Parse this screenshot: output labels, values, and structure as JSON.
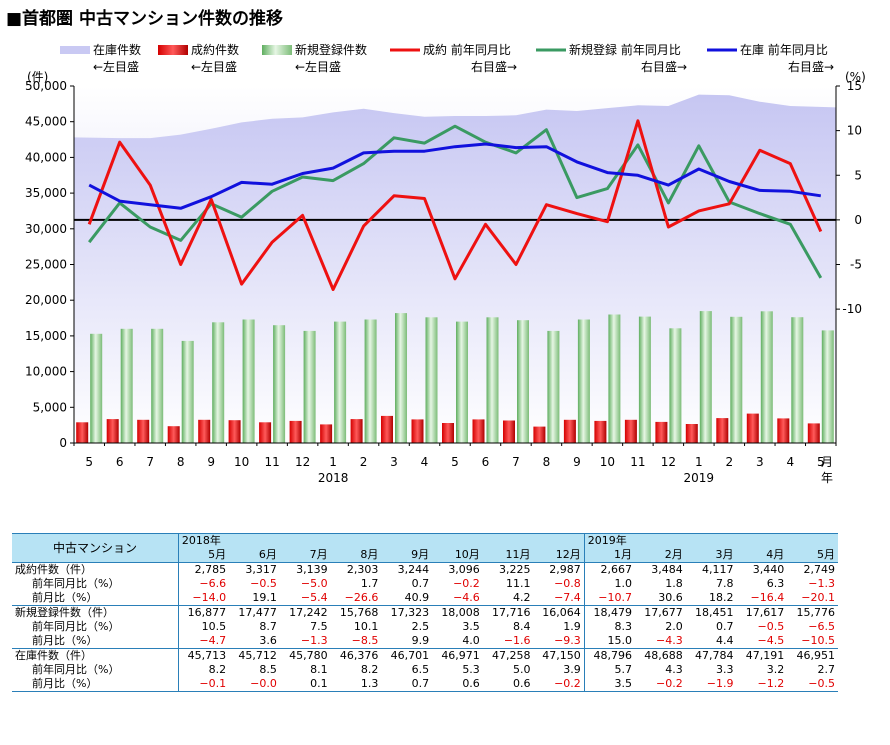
{
  "title": "■首都圏 中古マンション件数の推移",
  "legend": [
    {
      "name": "在庫件数",
      "note": "←左目盛",
      "kind": "area",
      "color": "#c9c9f3"
    },
    {
      "name": "成約件数",
      "note": "←左目盛",
      "kind": "bar",
      "color": "#cc0000"
    },
    {
      "name": "新規登録件数",
      "note": "←左目盛",
      "kind": "bar",
      "color": "#8ec98a"
    },
    {
      "name": "成約 前年同月比",
      "note": "右目盛→",
      "kind": "line",
      "color": "#ee1111"
    },
    {
      "name": "新規登録 前年同月比",
      "note": "右目盛→",
      "kind": "line",
      "color": "#3a9a62"
    },
    {
      "name": "在庫 前年同月比",
      "note": "右目盛→",
      "kind": "line",
      "color": "#1111dd"
    }
  ],
  "left_unit": "(件)",
  "right_unit": "(%)",
  "month_unit": [
    "月",
    "年"
  ],
  "left_ticks": [
    "50,000",
    "45,000",
    "40,000",
    "35,000",
    "30,000",
    "25,000",
    "20,000",
    "15,000",
    "10,000",
    "5,000",
    "0"
  ],
  "right_ticks": [
    "15",
    "10",
    "5",
    "0",
    "-5",
    "-10"
  ],
  "chart_data": {
    "type": "bar",
    "categories": [
      "5",
      "6",
      "7",
      "8",
      "9",
      "10",
      "11",
      "12",
      "1",
      "2",
      "3",
      "4",
      "5",
      "6",
      "7",
      "8",
      "9",
      "10",
      "11",
      "12",
      "1",
      "2",
      "3",
      "4",
      "5"
    ],
    "year_labels": [
      {
        "label": "2018",
        "index": 8
      },
      {
        "label": "2019",
        "index": 20
      }
    ],
    "ylim_left": [
      0,
      50000
    ],
    "ylim_right": [
      -25,
      15
    ],
    "series": [
      {
        "name": "在庫件数",
        "type": "area",
        "axis": "left",
        "values": [
          42800,
          42700,
          42700,
          43200,
          44000,
          44900,
          45400,
          45600,
          46300,
          46800,
          46200,
          45700,
          45800,
          45800,
          45900,
          46700,
          46500,
          46900,
          47300,
          47200,
          48800,
          48700,
          47800,
          47200,
          47000
        ]
      },
      {
        "name": "成約件数",
        "type": "bar",
        "axis": "left",
        "values": [
          2900,
          3350,
          3250,
          2350,
          3250,
          3200,
          2900,
          3100,
          2600,
          3350,
          3800,
          3300,
          2800,
          3300,
          3150,
          2300,
          3250,
          3100,
          3250,
          2950,
          2667,
          3484,
          4117,
          3440,
          2749
        ]
      },
      {
        "name": "新規登録件数",
        "type": "bar",
        "axis": "left",
        "values": [
          15300,
          16000,
          16000,
          14300,
          16900,
          17300,
          16500,
          15700,
          17000,
          17300,
          18200,
          17600,
          17000,
          17600,
          17200,
          15700,
          17300,
          18000,
          17700,
          16064,
          18479,
          17677,
          18451,
          17617,
          15776
        ]
      },
      {
        "name": "成約 前年同月比",
        "type": "line",
        "axis": "right",
        "values": [
          -0.5,
          8.7,
          3.9,
          -5.0,
          2.3,
          -7.2,
          -2.5,
          0.5,
          -7.8,
          -0.7,
          2.7,
          2.4,
          -6.6,
          -0.5,
          -5.0,
          1.7,
          0.7,
          -0.2,
          11.1,
          -0.8,
          1.0,
          1.8,
          7.8,
          6.3,
          -1.3
        ]
      },
      {
        "name": "新規登録 前年同月比",
        "type": "line",
        "axis": "right",
        "values": [
          -2.5,
          1.9,
          -0.8,
          -2.3,
          1.8,
          0.3,
          3.2,
          4.8,
          4.4,
          6.3,
          9.2,
          8.6,
          10.5,
          8.7,
          7.5,
          10.1,
          2.5,
          3.5,
          8.4,
          1.9,
          8.3,
          2.0,
          0.7,
          -0.5,
          -6.5
        ]
      },
      {
        "name": "在庫 前年同月比",
        "type": "line",
        "axis": "right",
        "values": [
          3.9,
          2.1,
          1.7,
          1.3,
          2.6,
          4.2,
          4.0,
          5.2,
          5.8,
          7.5,
          7.7,
          7.7,
          8.2,
          8.5,
          8.1,
          8.2,
          6.5,
          5.3,
          5.0,
          3.9,
          5.7,
          4.3,
          3.3,
          3.2,
          2.7
        ]
      }
    ]
  },
  "table": {
    "header_label": "中古マンション",
    "year1": "2018年",
    "year2": "2019年",
    "months": [
      "5月",
      "6月",
      "7月",
      "8月",
      "9月",
      "10月",
      "11月",
      "12月",
      "1月",
      "2月",
      "3月",
      "4月",
      "5月"
    ],
    "rows": [
      {
        "label": "成約件数（件）",
        "sub": false,
        "group": true,
        "values": [
          "2,785",
          "3,317",
          "3,139",
          "2,303",
          "3,244",
          "3,096",
          "3,225",
          "2,987",
          "2,667",
          "3,484",
          "4,117",
          "3,440",
          "2,749"
        ]
      },
      {
        "label": "前年同月比（%）",
        "sub": true,
        "values": [
          "−6.6",
          "−0.5",
          "−5.0",
          "1.7",
          "0.7",
          "−0.2",
          "11.1",
          "−0.8",
          "1.0",
          "1.8",
          "7.8",
          "6.3",
          "−1.3"
        ]
      },
      {
        "label": "前月比（%）",
        "sub": true,
        "values": [
          "−14.0",
          "19.1",
          "−5.4",
          "−26.6",
          "40.9",
          "−4.6",
          "4.2",
          "−7.4",
          "−10.7",
          "30.6",
          "18.2",
          "−16.4",
          "−20.1"
        ]
      },
      {
        "label": "新規登録件数（件）",
        "sub": false,
        "group": true,
        "values": [
          "16,877",
          "17,477",
          "17,242",
          "15,768",
          "17,323",
          "18,008",
          "17,716",
          "16,064",
          "18,479",
          "17,677",
          "18,451",
          "17,617",
          "15,776"
        ]
      },
      {
        "label": "前年同月比（%）",
        "sub": true,
        "values": [
          "10.5",
          "8.7",
          "7.5",
          "10.1",
          "2.5",
          "3.5",
          "8.4",
          "1.9",
          "8.3",
          "2.0",
          "0.7",
          "−0.5",
          "−6.5"
        ]
      },
      {
        "label": "前月比（%）",
        "sub": true,
        "values": [
          "−4.7",
          "3.6",
          "−1.3",
          "−8.5",
          "9.9",
          "4.0",
          "−1.6",
          "−9.3",
          "15.0",
          "−4.3",
          "4.4",
          "−4.5",
          "−10.5"
        ]
      },
      {
        "label": "在庫件数（件）",
        "sub": false,
        "group": true,
        "values": [
          "45,713",
          "45,712",
          "45,780",
          "46,376",
          "46,701",
          "46,971",
          "47,258",
          "47,150",
          "48,796",
          "48,688",
          "47,784",
          "47,191",
          "46,951"
        ]
      },
      {
        "label": "前年同月比（%）",
        "sub": true,
        "values": [
          "8.2",
          "8.5",
          "8.1",
          "8.2",
          "6.5",
          "5.3",
          "5.0",
          "3.9",
          "5.7",
          "4.3",
          "3.3",
          "3.2",
          "2.7"
        ]
      },
      {
        "label": "前月比（%）",
        "sub": true,
        "values": [
          "−0.1",
          "−0.0",
          "0.1",
          "1.3",
          "0.7",
          "0.6",
          "0.6",
          "−0.2",
          "3.5",
          "−0.2",
          "−1.9",
          "−1.2",
          "−0.5"
        ]
      }
    ]
  }
}
